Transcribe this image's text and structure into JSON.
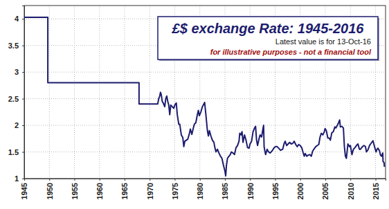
{
  "chart_data": {
    "type": "line",
    "title": "£$ exchange Rate: 1945-2016",
    "subtitle": "Latest value is for 13-Oct-16",
    "annotation": "for illustrative purposes - not a financial tool",
    "color": "#1c1c6e",
    "grid": true,
    "xlim": [
      1945,
      2017
    ],
    "ylim": [
      1,
      4.25
    ],
    "xticks": [
      1945,
      1950,
      1955,
      1960,
      1965,
      1970,
      1975,
      1980,
      1985,
      1990,
      1995,
      2000,
      2005,
      2010,
      2015
    ],
    "yticks": [
      1,
      1.5,
      2,
      2.5,
      3,
      3.5,
      4
    ],
    "x": [
      1945,
      1949.7,
      1949.7,
      1967.88,
      1967.88,
      1971.6,
      1971.8,
      1972.0,
      1972.15,
      1972.3,
      1972.5,
      1972.7,
      1973.0,
      1973.2,
      1973.4,
      1973.6,
      1973.8,
      1974.0,
      1974.2,
      1974.5,
      1974.8,
      1975.0,
      1975.3,
      1975.5,
      1975.8,
      1976.0,
      1976.3,
      1976.6,
      1976.8,
      1977.0,
      1977.3,
      1977.6,
      1977.9,
      1978.1,
      1978.4,
      1978.7,
      1978.9,
      1979.2,
      1979.5,
      1979.7,
      1979.9,
      1980.2,
      1980.5,
      1980.8,
      1980.95,
      1981.2,
      1981.5,
      1981.7,
      1981.9,
      1982.2,
      1982.5,
      1982.8,
      1982.95,
      1983.2,
      1983.5,
      1983.8,
      1984.1,
      1984.4,
      1984.7,
      1984.95,
      1985.15,
      1985.3,
      1985.5,
      1985.8,
      1986.0,
      1986.3,
      1986.6,
      1986.9,
      1987.2,
      1987.5,
      1987.8,
      1987.95,
      1988.2,
      1988.4,
      1988.6,
      1988.9,
      1989.2,
      1989.5,
      1989.8,
      1990.0,
      1990.3,
      1990.6,
      1990.9,
      1991.1,
      1991.3,
      1991.5,
      1991.8,
      1992.0,
      1992.3,
      1992.6,
      1992.7,
      1992.8,
      1992.95,
      1993.1,
      1993.4,
      1993.7,
      1994.0,
      1994.4,
      1994.8,
      1995.1,
      1995.4,
      1995.8,
      1996.1,
      1996.5,
      1996.8,
      1997.0,
      1997.3,
      1997.6,
      1997.9,
      1998.2,
      1998.5,
      1998.8,
      1999.1,
      1999.4,
      1999.7,
      2000.0,
      2000.3,
      2000.6,
      2000.8,
      2001.0,
      2001.3,
      2001.6,
      2001.9,
      2002.2,
      2002.5,
      2002.8,
      2003.1,
      2003.4,
      2003.7,
      2003.95,
      2004.2,
      2004.5,
      2004.8,
      2004.95,
      2005.2,
      2005.5,
      2005.8,
      2006.0,
      2006.3,
      2006.6,
      2006.9,
      2007.1,
      2007.4,
      2007.6,
      2007.85,
      2008.0,
      2008.3,
      2008.6,
      2008.8,
      2009.0,
      2009.2,
      2009.5,
      2009.8,
      2010.0,
      2010.3,
      2010.6,
      2010.9,
      2011.2,
      2011.5,
      2011.8,
      2012.0,
      2012.4,
      2012.7,
      2013.0,
      2013.2,
      2013.5,
      2013.8,
      2014.1,
      2014.5,
      2014.8,
      2015.1,
      2015.3,
      2015.5,
      2015.8,
      2016.0,
      2016.2,
      2016.45,
      2016.5,
      2016.7,
      2016.78
    ],
    "values": [
      4.03,
      4.03,
      2.8,
      2.8,
      2.4,
      2.4,
      2.5,
      2.55,
      2.62,
      2.58,
      2.45,
      2.42,
      2.35,
      2.5,
      2.55,
      2.45,
      2.38,
      2.2,
      2.38,
      2.35,
      2.32,
      2.38,
      2.42,
      2.2,
      2.02,
      2.02,
      1.82,
      1.77,
      1.6,
      1.7,
      1.72,
      1.74,
      1.84,
      1.93,
      1.83,
      1.95,
      2.02,
      2.05,
      2.2,
      2.28,
      2.18,
      2.25,
      2.35,
      2.4,
      2.43,
      2.2,
      1.9,
      1.8,
      1.9,
      1.8,
      1.72,
      1.68,
      1.6,
      1.5,
      1.55,
      1.48,
      1.42,
      1.38,
      1.25,
      1.16,
      1.05,
      1.25,
      1.38,
      1.42,
      1.44,
      1.5,
      1.48,
      1.45,
      1.58,
      1.62,
      1.7,
      1.85,
      1.82,
      1.88,
      1.68,
      1.82,
      1.72,
      1.58,
      1.57,
      1.65,
      1.7,
      1.88,
      1.95,
      1.98,
      1.72,
      1.62,
      1.75,
      1.82,
      1.78,
      1.95,
      2.0,
      1.6,
      1.52,
      1.45,
      1.55,
      1.5,
      1.48,
      1.52,
      1.58,
      1.6,
      1.6,
      1.56,
      1.53,
      1.55,
      1.66,
      1.7,
      1.62,
      1.65,
      1.68,
      1.65,
      1.66,
      1.7,
      1.64,
      1.6,
      1.64,
      1.62,
      1.58,
      1.48,
      1.42,
      1.47,
      1.42,
      1.44,
      1.45,
      1.42,
      1.52,
      1.56,
      1.6,
      1.62,
      1.64,
      1.78,
      1.85,
      1.82,
      1.88,
      1.94,
      1.9,
      1.76,
      1.76,
      1.72,
      1.86,
      1.88,
      1.97,
      1.95,
      2.0,
      2.04,
      2.1,
      1.97,
      1.98,
      1.95,
      1.6,
      1.42,
      1.38,
      1.65,
      1.6,
      1.62,
      1.45,
      1.55,
      1.58,
      1.62,
      1.65,
      1.55,
      1.55,
      1.6,
      1.62,
      1.6,
      1.5,
      1.54,
      1.62,
      1.66,
      1.71,
      1.6,
      1.5,
      1.55,
      1.57,
      1.52,
      1.44,
      1.42,
      1.48,
      1.32,
      1.3,
      1.22
    ]
  }
}
